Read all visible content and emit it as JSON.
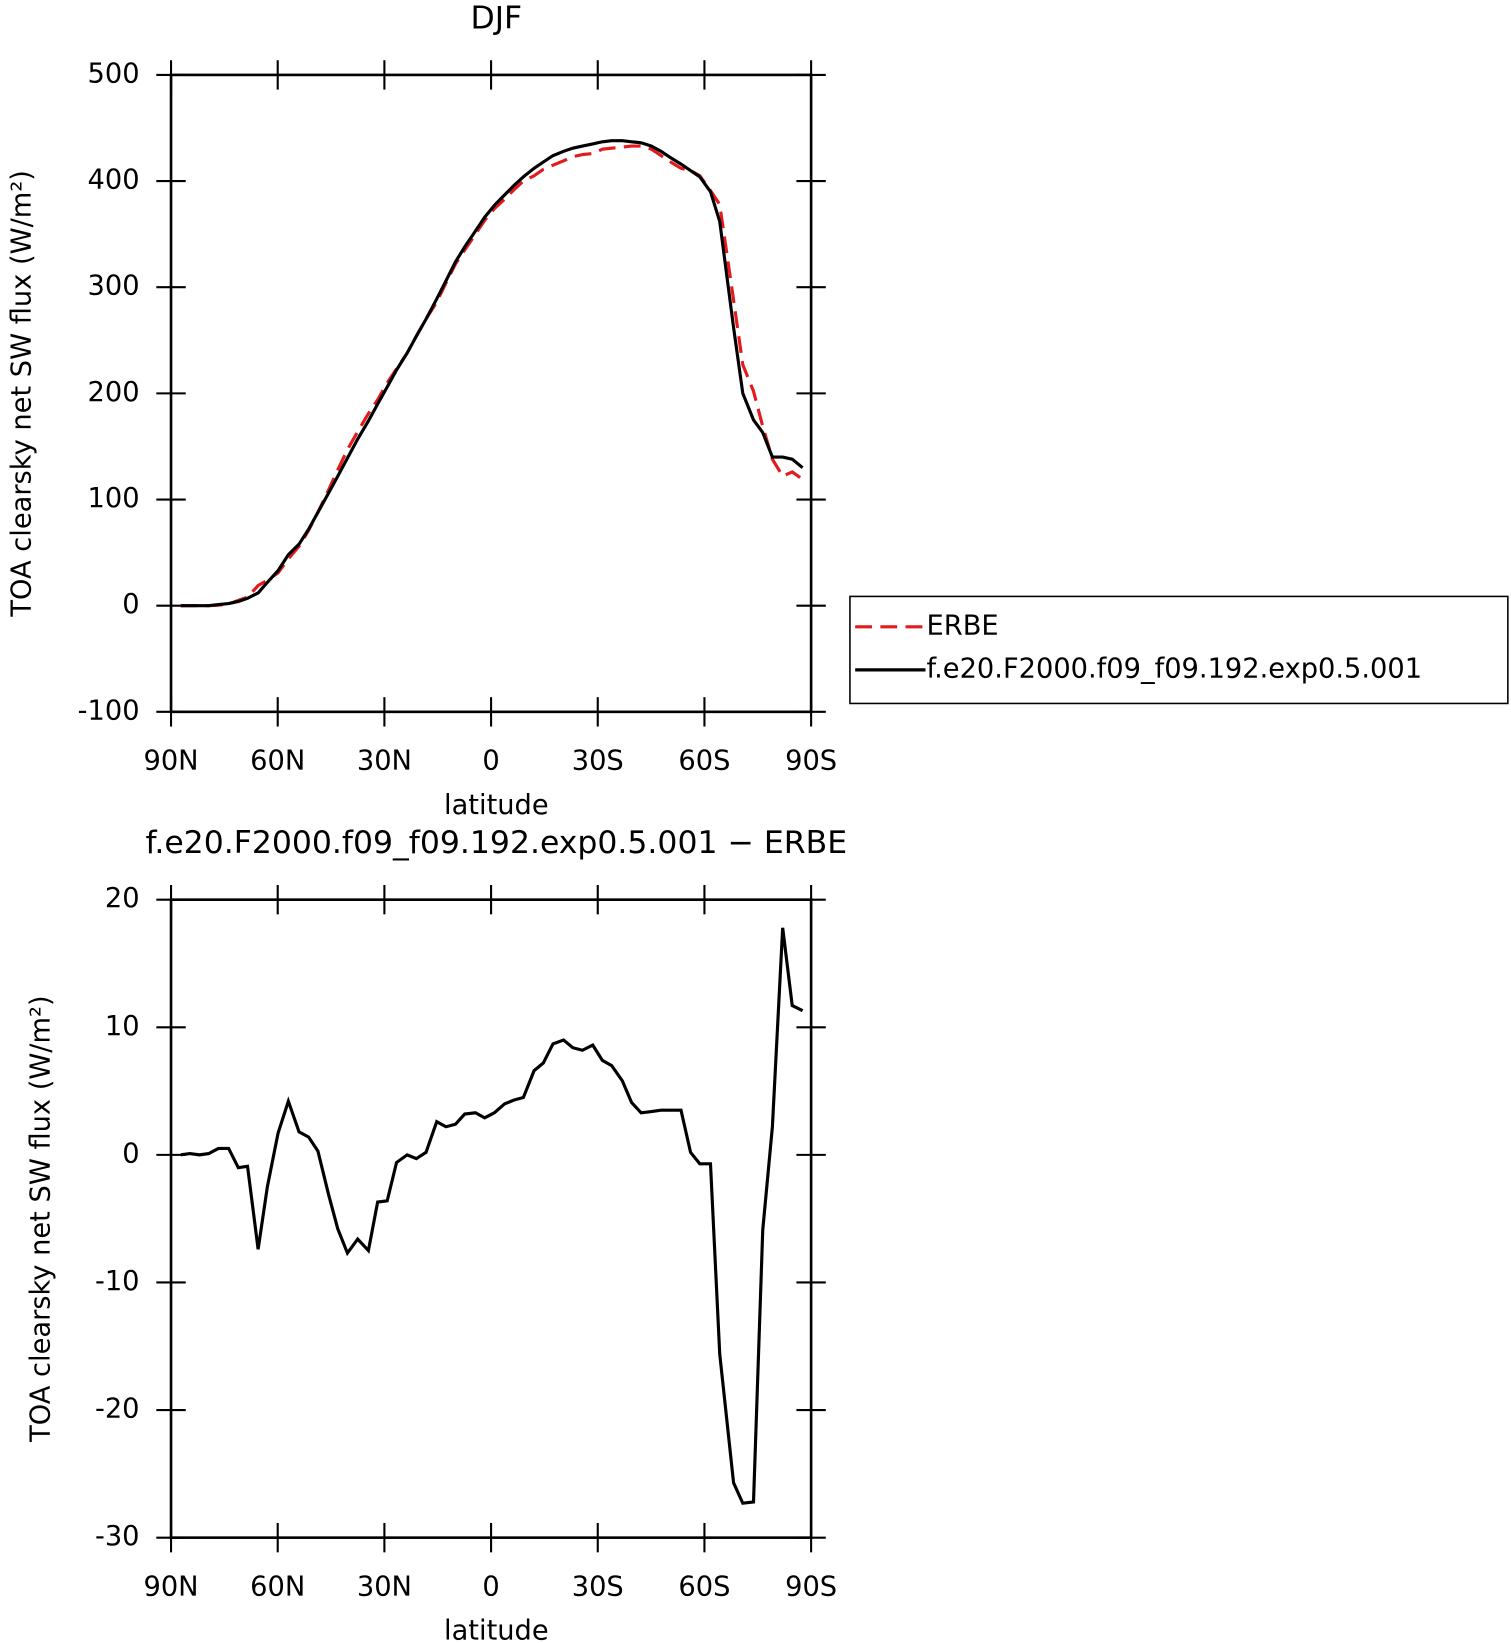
{
  "chart_data": [
    {
      "type": "line",
      "title": "DJF",
      "xlabel": "latitude",
      "ylabel": "TOA clearsky net SW flux (W/m²)",
      "x": [
        87.3,
        84.7,
        82,
        79.4,
        76.7,
        73.8,
        71.1,
        68.5,
        65.5,
        62.9,
        59.9,
        57,
        54,
        51.3,
        48.7,
        45.7,
        43.1,
        40.4,
        37.5,
        34.5,
        31.9,
        29.2,
        26.6,
        23.6,
        21,
        18.3,
        15.3,
        12.7,
        10,
        7.4,
        4.4,
        1.8,
        -0.9,
        -3.8,
        -6.5,
        -9.1,
        -12.1,
        -14.7,
        -17.4,
        -20.4,
        -23,
        -25.7,
        -28.6,
        -31.3,
        -33.9,
        -36.9,
        -39.5,
        -42.2,
        -45.1,
        -47.8,
        -50.5,
        -53.4,
        -56.1,
        -58.7,
        -61.7,
        -64.3,
        -68.2,
        -70.8,
        -73.8,
        -76.4,
        -79.1,
        -82,
        -84.7,
        -87.6
      ],
      "series": [
        {
          "name": "ERBE",
          "color": "#e41a1c",
          "linestyle": "dashed",
          "values": [
            0,
            0,
            0,
            0,
            0.5,
            1.5,
            5,
            8,
            19,
            24,
            31,
            44,
            56,
            71,
            88,
            109,
            128,
            147,
            164,
            181,
            194,
            210,
            223,
            238,
            254,
            270,
            286,
            304,
            322,
            335,
            350,
            363,
            374,
            383,
            392,
            400,
            405,
            411,
            415,
            419,
            423,
            425,
            426,
            430,
            431,
            432,
            433,
            433,
            430,
            424,
            418,
            412,
            410,
            405,
            391,
            378,
            288,
            227,
            202,
            169,
            138,
            122,
            126,
            119
          ]
        },
        {
          "name": "f.e20.F2000.f09_f09.192.exp0.5.001",
          "color": "#000000",
          "linestyle": "solid",
          "values": [
            0,
            0,
            0,
            0,
            1,
            2,
            4,
            7,
            12,
            22,
            33,
            48,
            58,
            72,
            88,
            106,
            122,
            139,
            157,
            174,
            190,
            206,
            222,
            238,
            254,
            270,
            289,
            306,
            324,
            338,
            353,
            366,
            377,
            387,
            396,
            404,
            412,
            418,
            424,
            428,
            431,
            433,
            435,
            437,
            438,
            438,
            437,
            436,
            433,
            428,
            422,
            416,
            410,
            404,
            390,
            362,
            262,
            200,
            175,
            163,
            140,
            140,
            138,
            130
          ]
        }
      ],
      "xlim": [
        90,
        -90
      ],
      "xticks": [
        {
          "value": 90,
          "label": "90N"
        },
        {
          "value": 60,
          "label": "60N"
        },
        {
          "value": 30,
          "label": "30N"
        },
        0,
        {
          "value": -30,
          "label": "30S"
        },
        {
          "value": -60,
          "label": "60S"
        },
        {
          "value": -90,
          "label": "90S"
        }
      ],
      "ylim": [
        -100,
        500
      ],
      "yticks": [
        -100,
        0,
        100,
        200,
        300,
        400,
        500
      ],
      "legend": "right"
    },
    {
      "type": "line",
      "title": "f.e20.F2000.f09_f09.192.exp0.5.001 − ERBE",
      "xlabel": "latitude",
      "ylabel": "TOA clearsky net SW flux (W/m²)",
      "x": [
        87.3,
        84.7,
        82,
        79.4,
        76.7,
        73.8,
        71.1,
        68.5,
        65.5,
        62.9,
        59.9,
        57,
        54,
        51.3,
        48.7,
        45.7,
        43.1,
        40.4,
        37.5,
        34.5,
        31.9,
        29.2,
        26.6,
        23.6,
        21,
        18.3,
        15.3,
        12.7,
        10,
        7.4,
        4.4,
        1.8,
        -0.9,
        -3.8,
        -6.5,
        -9.1,
        -12.1,
        -14.7,
        -17.4,
        -20.4,
        -23,
        -25.7,
        -28.6,
        -31.3,
        -33.9,
        -36.9,
        -39.5,
        -42.2,
        -45.1,
        -47.8,
        -50.5,
        -53.4,
        -56.1,
        -58.7,
        -61.7,
        -64.3,
        -68.2,
        -70.8,
        -73.8,
        -76.4,
        -79.1,
        -82,
        -84.7,
        -87.6
      ],
      "values": [
        0,
        0.1,
        0,
        0.1,
        0.5,
        0.5,
        -1,
        -0.9,
        -7.4,
        -2.5,
        1.7,
        4.2,
        1.8,
        1.4,
        0.3,
        -3.1,
        -5.8,
        -7.7,
        -6.6,
        -7.5,
        -3.7,
        -3.6,
        -0.6,
        0,
        -0.3,
        0.2,
        2.6,
        2.2,
        2.4,
        3.2,
        3.3,
        2.9,
        3.3,
        4,
        4.3,
        4.5,
        6.6,
        7.2,
        8.7,
        9,
        8.4,
        8.2,
        8.6,
        7.4,
        7,
        5.8,
        4.1,
        3.3,
        3.4,
        3.5,
        3.5,
        3.5,
        0.2,
        -0.7,
        -0.7,
        -15.6,
        -25.7,
        -27.3,
        -27.2,
        -5.9,
        2.2,
        17.8,
        11.7,
        11.3
      ],
      "color": "#000000",
      "xlim": [
        90,
        -90
      ],
      "xticks": [
        {
          "value": 90,
          "label": "90N"
        },
        {
          "value": 60,
          "label": "60N"
        },
        {
          "value": 30,
          "label": "30N"
        },
        0,
        {
          "value": -30,
          "label": "30S"
        },
        {
          "value": -60,
          "label": "60S"
        },
        {
          "value": -90,
          "label": "90S"
        }
      ],
      "ylim": [
        -30,
        20
      ],
      "yticks": [
        -30,
        -20,
        -10,
        0,
        10,
        20
      ]
    }
  ]
}
